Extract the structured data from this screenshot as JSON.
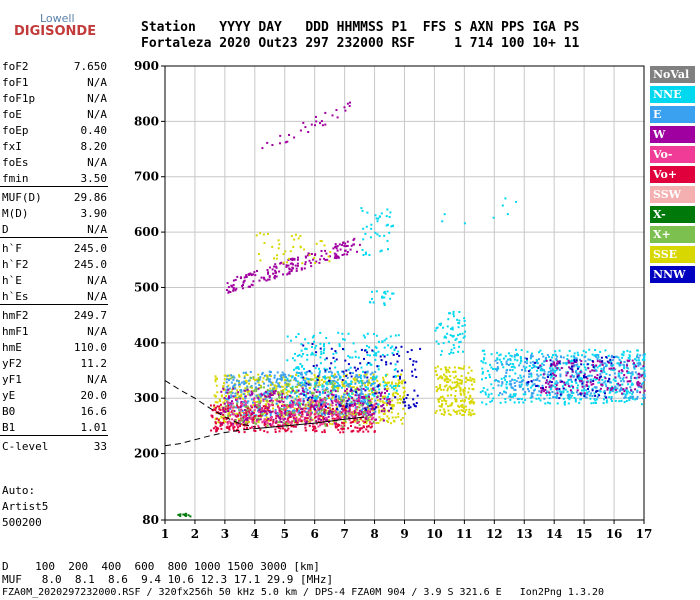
{
  "logo": {
    "top": "Lowell",
    "main": "DIGISONDE"
  },
  "header": {
    "line1": "Station   YYYY DAY   DDD HHMMSS P1  FFS S AXN PPS IGA PS",
    "line2": "Fortaleza 2020 Out23 297 232000 RSF     1 714 100 10+ 11"
  },
  "params": [
    {
      "name": "foF2",
      "value": "7.650"
    },
    {
      "name": "foF1",
      "value": "N/A"
    },
    {
      "name": "foF1p",
      "value": "N/A"
    },
    {
      "name": "foE",
      "value": "N/A"
    },
    {
      "name": "foEp",
      "value": "0.40"
    },
    {
      "name": "fxI",
      "value": "8.20"
    },
    {
      "name": "foEs",
      "value": "N/A"
    },
    {
      "name": "fmin",
      "value": "3.50"
    },
    {
      "name": "MUF(D)",
      "value": "29.86"
    },
    {
      "name": "M(D)",
      "value": "3.90"
    },
    {
      "name": "D",
      "value": "N/A"
    },
    {
      "name": "h`F",
      "value": "245.0"
    },
    {
      "name": "h`F2",
      "value": "245.0"
    },
    {
      "name": "h`E",
      "value": "N/A"
    },
    {
      "name": "h`Es",
      "value": "N/A"
    },
    {
      "name": "hmF2",
      "value": "249.7"
    },
    {
      "name": "hmF1",
      "value": "N/A"
    },
    {
      "name": "hmE",
      "value": "110.0"
    },
    {
      "name": "yF2",
      "value": "11.2"
    },
    {
      "name": "yF1",
      "value": "N/A"
    },
    {
      "name": "yE",
      "value": "20.0"
    },
    {
      "name": "B0",
      "value": "16.6"
    },
    {
      "name": "B1",
      "value": "1.01"
    },
    {
      "name": "C-level",
      "value": "33"
    }
  ],
  "auto": {
    "line1": "Auto:",
    "line2": "Artist5",
    "line3": "500200"
  },
  "legend": [
    {
      "label": "NoVal",
      "color": "#808080"
    },
    {
      "label": "NNE",
      "color": "#00d8f0"
    },
    {
      "label": "E",
      "color": "#3aa0f0"
    },
    {
      "label": "W",
      "color": "#a000a0"
    },
    {
      "label": "Vo-",
      "color": "#f03c96"
    },
    {
      "label": "Vo+",
      "color": "#e0003c"
    },
    {
      "label": "SSW",
      "color": "#f4b0b0"
    },
    {
      "label": "X-",
      "color": "#00780a"
    },
    {
      "label": "X+",
      "color": "#7cc050"
    },
    {
      "label": "SSE",
      "color": "#d8d800"
    },
    {
      "label": "NNW",
      "color": "#0000c0"
    }
  ],
  "footer": {
    "line1": "D    100  200  400  600  800 1000 1500 3000 [km]",
    "line2": "MUF   8.0  8.1  8.6  9.4 10.6 12.3 17.1 29.9 [MHz]",
    "filename": "FZA0M_2020297232000.RSF / 320fx256h 50 kHz 5.0 km / DPS-4 FZA0M 904 / 3.9 S 321.6 E   Ion2Png 1.3.20"
  },
  "chart_data": {
    "type": "scatter",
    "xlim": [
      1,
      17
    ],
    "ylim": [
      80,
      900
    ],
    "x_ticks": [
      1,
      2,
      3,
      4,
      5,
      6,
      7,
      8,
      9,
      10,
      11,
      12,
      13,
      14,
      15,
      16,
      17
    ],
    "y_ticks": [
      80,
      200,
      300,
      400,
      500,
      600,
      700,
      800,
      900
    ],
    "grid": true,
    "clusters": [
      {
        "sig": "W",
        "x": [
          3.0,
          7.5
        ],
        "y": [
          488,
          595
        ],
        "density": 180,
        "trend": "rising"
      },
      {
        "sig": "W",
        "x": [
          4.2,
          7.2
        ],
        "y": [
          740,
          840
        ],
        "density": 30,
        "trend": "rising"
      },
      {
        "sig": "SSE",
        "x": [
          4.0,
          6.5
        ],
        "y": [
          545,
          600
        ],
        "density": 40,
        "trend": "flat"
      },
      {
        "sig": "NNE",
        "x": [
          7.5,
          8.6
        ],
        "y": [
          560,
          650
        ],
        "density": 40,
        "trend": "flat"
      },
      {
        "sig": "NNE",
        "x": [
          7.8,
          8.7
        ],
        "y": [
          470,
          495
        ],
        "density": 20,
        "trend": "flat"
      },
      {
        "sig": "SSE",
        "x": [
          2.6,
          9.0
        ],
        "y": [
          255,
          345
        ],
        "density": 700,
        "trend": "flat"
      },
      {
        "sig": "E",
        "x": [
          3.0,
          8.0
        ],
        "y": [
          270,
          350
        ],
        "density": 500,
        "trend": "flat"
      },
      {
        "sig": "NNE",
        "x": [
          5.0,
          8.8
        ],
        "y": [
          290,
          420
        ],
        "density": 250,
        "trend": "flat"
      },
      {
        "sig": "Vo+",
        "x": [
          2.5,
          8.0
        ],
        "y": [
          240,
          290
        ],
        "density": 400,
        "trend": "flat"
      },
      {
        "sig": "W",
        "x": [
          2.8,
          8.5
        ],
        "y": [
          255,
          320
        ],
        "density": 300,
        "trend": "flat"
      },
      {
        "sig": "Vo-",
        "x": [
          3.0,
          8.0
        ],
        "y": [
          250,
          300
        ],
        "density": 200,
        "trend": "flat"
      },
      {
        "sig": "X+",
        "x": [
          3.0,
          8.0
        ],
        "y": [
          250,
          340
        ],
        "density": 150,
        "trend": "flat"
      },
      {
        "sig": "NNW",
        "x": [
          5.5,
          9.5
        ],
        "y": [
          280,
          400
        ],
        "density": 120,
        "trend": "flat"
      },
      {
        "sig": "SSE",
        "x": [
          10.0,
          11.3
        ],
        "y": [
          270,
          360
        ],
        "density": 200,
        "trend": "flat"
      },
      {
        "sig": "NNE",
        "x": [
          10.0,
          11.0
        ],
        "y": [
          380,
          460
        ],
        "density": 60,
        "trend": "flat"
      },
      {
        "sig": "NNE",
        "x": [
          11.5,
          17.0
        ],
        "y": [
          290,
          390
        ],
        "density": 500,
        "trend": "flat"
      },
      {
        "sig": "E",
        "x": [
          12.0,
          17.0
        ],
        "y": [
          300,
          380
        ],
        "density": 300,
        "trend": "flat"
      },
      {
        "sig": "W",
        "x": [
          13.5,
          17.0
        ],
        "y": [
          310,
          370
        ],
        "density": 150,
        "trend": "flat"
      },
      {
        "sig": "NNW",
        "x": [
          13.0,
          16.0
        ],
        "y": [
          300,
          380
        ],
        "density": 60,
        "trend": "flat"
      },
      {
        "sig": "X-",
        "x": [
          1.4,
          1.9
        ],
        "y": [
          88,
          93
        ],
        "density": 10,
        "trend": "flat"
      },
      {
        "sig": "NNE",
        "x": [
          9.8,
          12.8
        ],
        "y": [
          610,
          670
        ],
        "density": 8,
        "trend": "flat"
      }
    ],
    "profile_lines": [
      {
        "points": [
          [
            1,
            332
          ],
          [
            1.5,
            315
          ],
          [
            2,
            300
          ],
          [
            2.5,
            282
          ],
          [
            3,
            266
          ],
          [
            3.5,
            254
          ],
          [
            4,
            248
          ]
        ],
        "style": "dashed"
      },
      {
        "points": [
          [
            1,
            214
          ],
          [
            1.5,
            218
          ],
          [
            2,
            225
          ],
          [
            2.5,
            232
          ],
          [
            3,
            238
          ],
          [
            3.5,
            242
          ],
          [
            4,
            245
          ]
        ],
        "style": "dashed"
      },
      {
        "points": [
          [
            4,
            245
          ],
          [
            5,
            250
          ],
          [
            6,
            255
          ],
          [
            7,
            262
          ],
          [
            7.65,
            266
          ]
        ],
        "style": "solid"
      }
    ]
  }
}
